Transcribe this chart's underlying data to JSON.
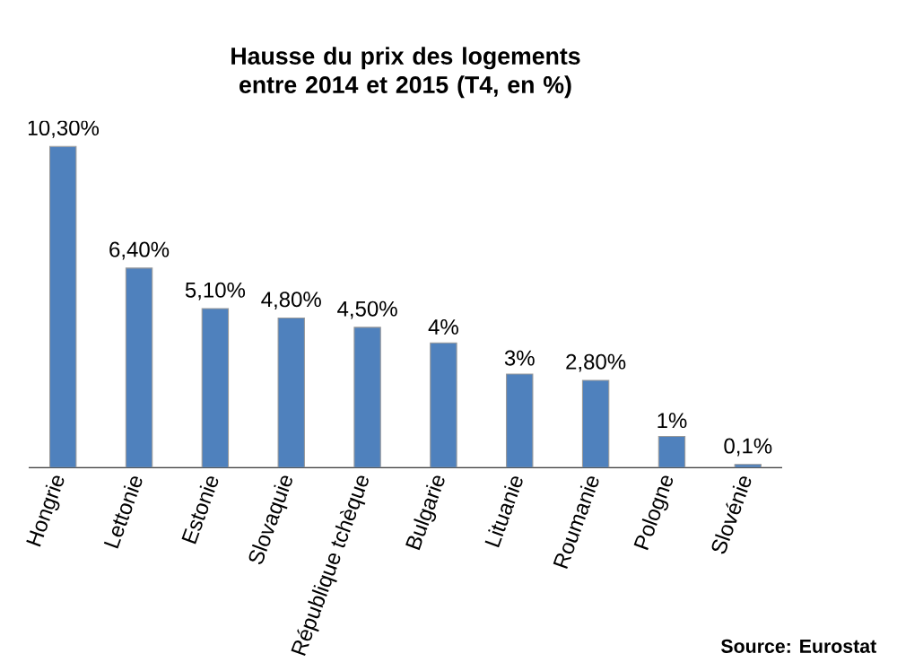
{
  "chart_data": {
    "type": "bar",
    "title": "Hausse du prix des logements entre 2014 et 2015 (T4, en %)",
    "categories": [
      "Hongrie",
      "Lettonie",
      "Estonie",
      "Slovaquie",
      "République tchèque",
      "Bulgarie",
      "Lituanie",
      "Roumanie",
      "Pologne",
      "Slovénie"
    ],
    "values": [
      10.3,
      6.4,
      5.1,
      4.8,
      4.5,
      4,
      3,
      2.8,
      1,
      0.1
    ],
    "value_labels": [
      "10,30%",
      "6,40%",
      "5,10%",
      "4,80%",
      "4,50%",
      "4%",
      "3%",
      "2,80%",
      "1%",
      "0,1%"
    ],
    "color": "#4f81bd",
    "annotations": [
      "Source: Eurostat"
    ]
  }
}
